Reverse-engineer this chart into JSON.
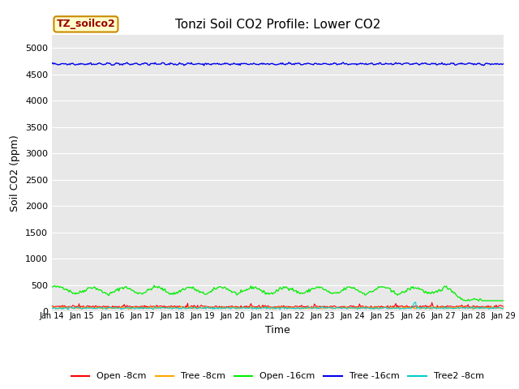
{
  "title": "Tonzi Soil CO2 Profile: Lower CO2",
  "xlabel": "Time",
  "ylabel": "Soil CO2 (ppm)",
  "ylim": [
    0,
    5250
  ],
  "yticks": [
    0,
    500,
    1000,
    1500,
    2000,
    2500,
    3000,
    3500,
    4000,
    4500,
    5000
  ],
  "x_start_day": 14,
  "x_end_day": 29,
  "xtick_days": [
    14,
    15,
    16,
    17,
    18,
    19,
    20,
    21,
    22,
    23,
    24,
    25,
    26,
    27,
    28,
    29
  ],
  "xtick_labels": [
    "Jan 14",
    "Jan 15",
    "Jan 16",
    "Jan 17",
    "Jan 18",
    "Jan 19",
    "Jan 20",
    "Jan 21",
    "Jan 22",
    "Jan 23",
    "Jan 24",
    "Jan 25",
    "Jan 26",
    "Jan 27",
    "Jan 28",
    "Jan 29"
  ],
  "series": {
    "open_8cm": {
      "color": "#ff0000",
      "label": "Open -8cm"
    },
    "tree_8cm": {
      "color": "#ffa500",
      "label": "Tree -8cm"
    },
    "open_16cm": {
      "color": "#00ee00",
      "label": "Open -16cm"
    },
    "tree_16cm": {
      "color": "#0000ee",
      "label": "Tree -16cm"
    },
    "tree2_8cm": {
      "color": "#00cccc",
      "label": "Tree2 -8cm"
    }
  },
  "legend_box_label": "TZ_soilco2",
  "legend_box_bg": "#ffffcc",
  "legend_box_border": "#cc8800",
  "legend_box_text_color": "#990000",
  "bg_color": "#e8e8e8",
  "fig_bg_color": "#ffffff",
  "n_points": 500
}
